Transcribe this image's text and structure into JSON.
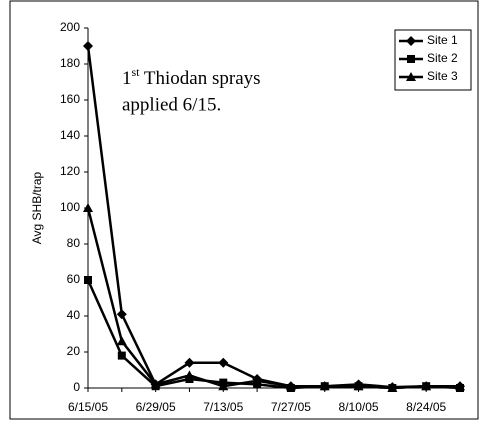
{
  "chart_data": {
    "type": "line",
    "y_label": "Avg SHB/trap",
    "annotation": [
      "1",
      "st",
      " Thiodan sprays",
      "applied 6/15."
    ],
    "categories": [
      "6/15/05",
      null,
      "6/29/05",
      null,
      "7/13/05",
      null,
      "7/27/05",
      null,
      "8/10/05",
      null,
      "8/24/05",
      null
    ],
    "series": [
      {
        "name": "Site 1",
        "color": "#000000",
        "marker": "diamond",
        "values": [
          190,
          41,
          2,
          14,
          14,
          5,
          1,
          1,
          2,
          0.5,
          1,
          1
        ]
      },
      {
        "name": "Site 2",
        "color": "#000000",
        "marker": "square",
        "values": [
          60,
          18,
          1,
          5,
          3,
          2,
          0,
          1,
          1,
          0,
          1,
          0
        ]
      },
      {
        "name": "Site 3",
        "color": "#000000",
        "marker": "triangle",
        "values": [
          100,
          26,
          2,
          7,
          1,
          4,
          1,
          1,
          1,
          0,
          1,
          1
        ]
      }
    ],
    "ylim": [
      0,
      200
    ],
    "yticks": [
      0,
      20,
      40,
      60,
      80,
      100,
      120,
      140,
      160,
      180,
      200
    ],
    "legend": "top-right"
  }
}
